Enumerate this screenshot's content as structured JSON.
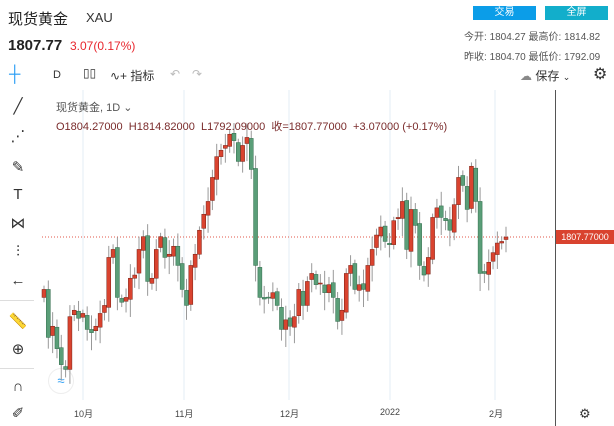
{
  "header": {
    "title": "现货黄金",
    "symbol": "XAU",
    "price": "1807.77",
    "change": "3.07(0.17%)",
    "trade_button": "交易",
    "fullscreen_button": "全屏",
    "stats": {
      "open_label": "今开:",
      "open": "1804.27",
      "high_label": "最高价:",
      "high": "1814.82",
      "prev_close_label": "昨收:",
      "prev_close": "1804.70",
      "low_label": "最低价:",
      "low": "1792.09"
    }
  },
  "toolbar": {
    "interval": "D",
    "indicators": "指标",
    "save": "保存"
  },
  "legend": {
    "name": "现货黄金, 1D",
    "o": "O1804.27000",
    "h": "H1814.82000",
    "l": "L1792.09000",
    "c": "收=1807.77000",
    "chg": "+3.07000 (+0.17%)"
  },
  "price_axis": {
    "current_label": "1807.77000",
    "current": 1807.77
  },
  "time_axis": [
    "10月",
    "11月",
    "12月",
    "2022",
    "2月"
  ],
  "colors": {
    "up": "#d9432f",
    "down": "#5a9e78",
    "current_line": "#e0574a"
  },
  "chart_data": {
    "type": "candlestick",
    "up_color": "red",
    "down_color": "green",
    "closes": [
      1775,
      1745,
      1752,
      1738,
      1728,
      1725,
      1758,
      1762,
      1757,
      1760,
      1750,
      1748,
      1752,
      1760,
      1765,
      1795,
      1800,
      1770,
      1767,
      1770,
      1782,
      1784,
      1800,
      1808,
      1780,
      1782,
      1800,
      1808,
      1795,
      1797,
      1802,
      1790,
      1775,
      1765,
      1790,
      1797,
      1812,
      1822,
      1830,
      1845,
      1858,
      1862,
      1865,
      1872,
      1868,
      1855,
      1865,
      1870,
      1850,
      1790,
      1770,
      1769,
      1770,
      1773,
      1765,
      1750,
      1756,
      1752,
      1758,
      1775,
      1765,
      1780,
      1785,
      1778,
      1779,
      1773,
      1778,
      1770,
      1755,
      1762,
      1785,
      1790,
      1775,
      1778,
      1775,
      1790,
      1800,
      1809,
      1814,
      1805,
      1803,
      1818,
      1820,
      1830,
      1800,
      1825,
      1815,
      1790,
      1784,
      1795,
      1820,
      1826,
      1820,
      1818,
      1812,
      1828,
      1845,
      1840,
      1825,
      1852,
      1830,
      1785,
      1785,
      1792,
      1798,
      1804,
      1805,
      1807.77
    ]
  }
}
